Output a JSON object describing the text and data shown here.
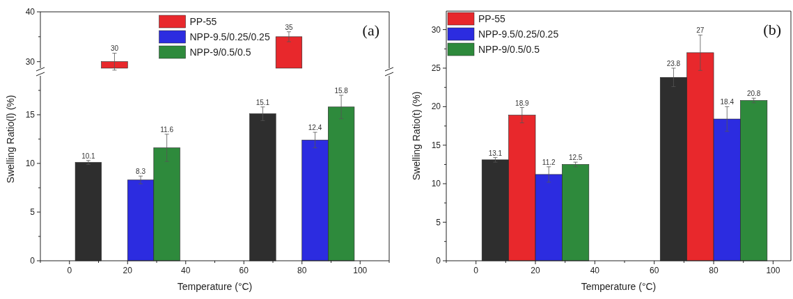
{
  "chart_data": [
    {
      "type": "bar",
      "annotations": [
        "(a)"
      ],
      "data_labels": true,
      "tick_labels": "y",
      "xlim": [
        -10,
        110
      ],
      "ylim": [
        28.7,
        40
      ],
      "yticks": [
        30,
        {
          "value": 35,
          "label": null
        },
        40
      ],
      "series": [
        {
          "color": "#e8282c",
          "x": [
            15.5,
            75.5
          ],
          "values": [
            30,
            35
          ],
          "errors": [
            1.7,
            1
          ]
        }
      ]
    },
    {
      "type": "bar",
      "xlabel": "Temperature (°C)",
      "ylabel": "Swelling Ratio(l) (%)",
      "legend": "top",
      "data_labels": true,
      "xlim": [
        -10,
        110
      ],
      "xticks": [
        {
          "value": -10,
          "label": null
        },
        0,
        {
          "value": 10,
          "label": null
        },
        20,
        {
          "value": 30,
          "label": null
        },
        40,
        {
          "value": 50,
          "label": null
        },
        60,
        {
          "value": 70,
          "label": null
        },
        80,
        {
          "value": 90,
          "label": null
        },
        100,
        {
          "value": 110,
          "label": null
        }
      ],
      "ylim": [
        0,
        19
      ],
      "yticks": [
        0,
        {
          "value": 2.5,
          "label": null
        },
        5,
        {
          "value": 7.5,
          "label": null
        },
        10,
        {
          "value": 12.5,
          "label": null
        },
        15,
        {
          "value": 17.5,
          "label": null
        }
      ],
      "series": [
        {
          "color": "#2e2e2e",
          "x": [
            6.5,
            66.5
          ],
          "values": [
            10.1,
            15.1
          ],
          "errors": [
            0.2,
            0.7
          ]
        },
        {
          "name": "PP-55",
          "color": "#e8282c",
          "values": [
            null,
            null
          ]
        },
        {
          "name": "NPP-9.5/0.25/0.25",
          "color": "#2c2ce0",
          "x": [
            24.5,
            84.5
          ],
          "values": [
            8.3,
            12.4
          ],
          "errors": [
            0.4,
            0.8
          ]
        },
        {
          "name": "NPP-9/0.5/0.5",
          "color": "#2e8a3c",
          "x": [
            33.5,
            93.5
          ],
          "values": [
            11.6,
            15.8
          ],
          "errors": [
            1.4,
            1.2
          ]
        }
      ]
    },
    {
      "type": "bar",
      "annotations": [
        "(b)"
      ],
      "xlabel": "Temperature (°C)",
      "ylabel": "Swelling Ratio(t) (%)",
      "legend": "top left",
      "data_labels": true,
      "xlim": [
        -10,
        106
      ],
      "xticks": [
        {
          "value": -10,
          "label": null
        },
        0,
        {
          "value": 10,
          "label": null
        },
        20,
        {
          "value": 30,
          "label": null
        },
        40,
        {
          "value": 50,
          "label": null
        },
        60,
        {
          "value": 70,
          "label": null
        },
        80,
        {
          "value": 90,
          "label": null
        },
        100
      ],
      "ylim": [
        0,
        32.4
      ],
      "yticks": [
        0,
        {
          "value": 2.5,
          "label": null
        },
        5,
        {
          "value": 7.5,
          "label": null
        },
        10,
        {
          "value": 12.5,
          "label": null
        },
        15,
        {
          "value": 17.5,
          "label": null
        },
        20,
        {
          "value": 22.5,
          "label": null
        },
        25,
        {
          "value": 27.5,
          "label": null
        },
        30
      ],
      "series": [
        {
          "color": "#2e2e2e",
          "x": [
            6.5,
            66.5
          ],
          "values": [
            13.1,
            23.8
          ],
          "errors": [
            0.3,
            1.2
          ]
        },
        {
          "name": "PP-55",
          "color": "#e8282c",
          "x": [
            15.5,
            75.5
          ],
          "values": [
            18.9,
            27
          ],
          "errors": [
            1,
            2.3
          ]
        },
        {
          "name": "NPP-9.5/0.25/0.25",
          "color": "#2c2ce0",
          "x": [
            24.5,
            84.5
          ],
          "values": [
            11.2,
            18.4
          ],
          "errors": [
            1,
            1.6
          ]
        },
        {
          "name": "NPP-9/0.5/0.5",
          "color": "#2e8a3c",
          "x": [
            33.5,
            93.5
          ],
          "values": [
            12.5,
            20.8
          ],
          "errors": [
            0.3,
            0.3
          ]
        }
      ]
    }
  ]
}
